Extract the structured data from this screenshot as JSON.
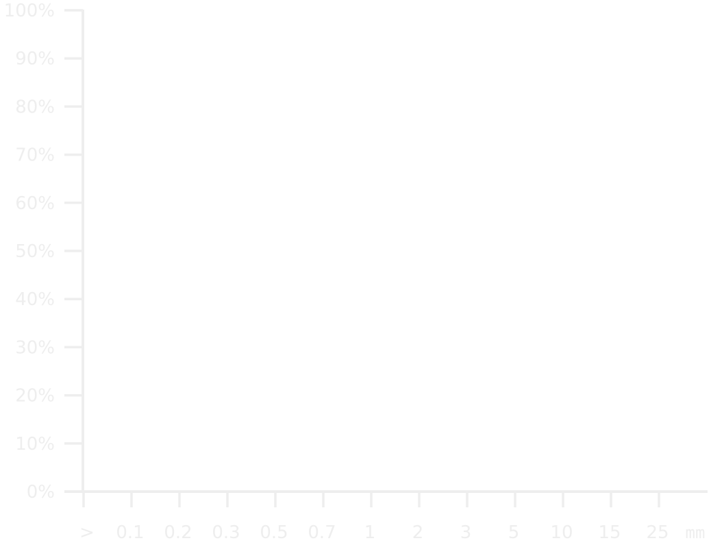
{
  "chart_data": {
    "type": "bar",
    "title": "",
    "xlabel": "",
    "ylabel": "",
    "x_unit": "mm",
    "categories": [
      ">",
      "0.1",
      "0.2",
      "0.3",
      "0.5",
      "0.7",
      "1",
      "2",
      "3",
      "5",
      "10",
      "15",
      "25"
    ],
    "y_tick_labels": [
      "0%",
      "10%",
      "20%",
      "30%",
      "40%",
      "50%",
      "60%",
      "70%",
      "80%",
      "90%",
      "100%"
    ],
    "y_ticks": [
      0,
      10,
      20,
      30,
      40,
      50,
      60,
      70,
      80,
      90,
      100
    ],
    "ylim": [
      0,
      100
    ],
    "series": [],
    "grid": false,
    "axis_color": "#eeeeee",
    "label_color": "#eeeeee"
  }
}
